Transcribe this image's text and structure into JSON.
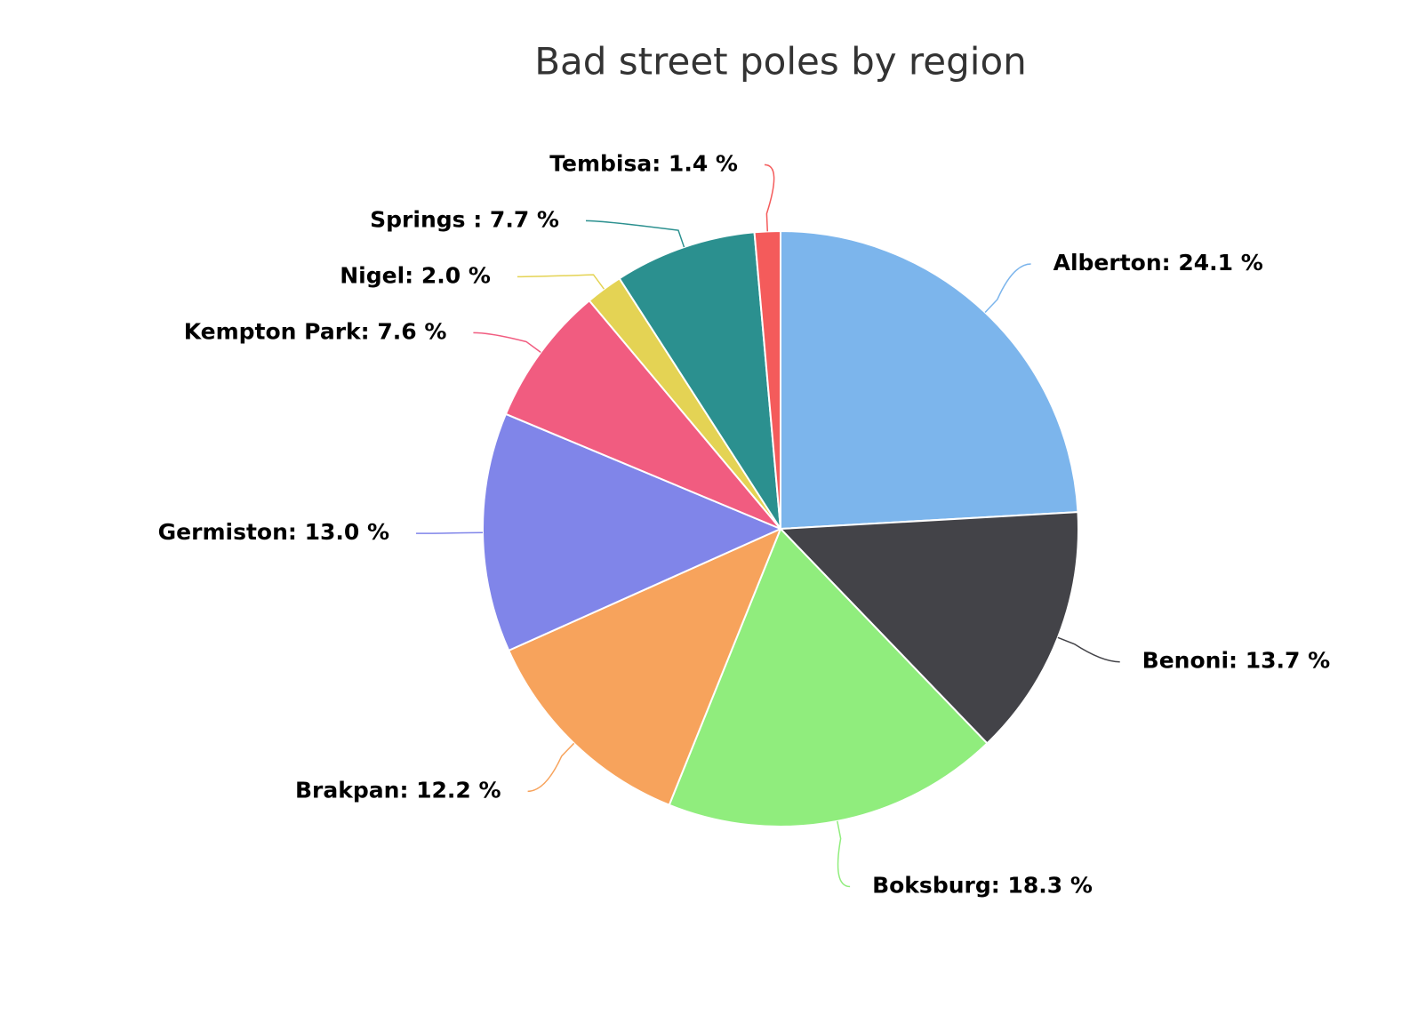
{
  "chart_data": {
    "type": "pie",
    "title": "Bad street poles by region",
    "values": [
      24.1,
      13.7,
      18.3,
      12.2,
      13.0,
      7.6,
      2.0,
      7.7,
      1.4
    ],
    "value_labels": [
      "Alberton: 24.1 %",
      "Benoni: 13.7 %",
      "Boksburg: 18.3 %",
      "Brakpan: 12.2 %",
      "Germiston: 13.0 %",
      "Kempton Park: 7.6 %",
      "Nigel: 2.0 %",
      "Springs : 7.7 %",
      "Tembisa: 1.4 %"
    ],
    "colors": [
      "#7cb5ec",
      "#434348",
      "#90ed7d",
      "#f7a35c",
      "#8085e9",
      "#f15c80",
      "#e4d354",
      "#2b908f",
      "#f45b5b"
    ]
  }
}
